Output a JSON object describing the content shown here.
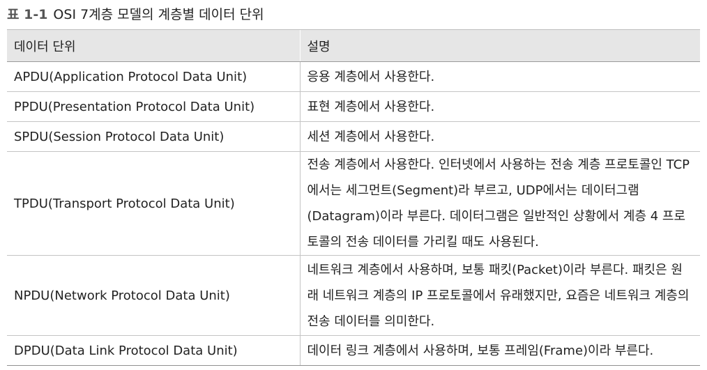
{
  "caption": {
    "label": "표 1-1",
    "title": "OSI 7계층 모델의 계층별 데이터 단위"
  },
  "table": {
    "headers": [
      "데이터 단위",
      "설명"
    ],
    "rows": [
      {
        "unit": "APDU(Application Protocol Data Unit)",
        "desc": "응용 계층에서 사용한다."
      },
      {
        "unit": "PPDU(Presentation Protocol Data Unit)",
        "desc": "표현 계층에서 사용한다."
      },
      {
        "unit": "SPDU(Session Protocol Data Unit)",
        "desc": "세션 계층에서 사용한다."
      },
      {
        "unit": "TPDU(Transport Protocol Data Unit)",
        "desc": "전송 계층에서 사용한다. 인터넷에서 사용하는 전송 계층 프로토콜인 TCP에서는 세그먼트(Segment)라 부르고, UDP에서는 데이터그램(Datagram)이라 부른다. 데이터그램은 일반적인 상황에서 계층 4 프로토콜의 전송 데이터를 가리킬 때도 사용된다."
      },
      {
        "unit": "NPDU(Network Protocol Data Unit)",
        "desc": "네트워크 계층에서 사용하며, 보통 패킷(Packet)이라 부른다. 패킷은 원래 네트워크 계층의 IP 프로토콜에서 유래했지만, 요즘은 네트워크 계층의 전송 데이터를 의미한다."
      },
      {
        "unit": "DPDU(Data Link Protocol Data Unit)",
        "desc": "데이터 링크 계층에서 사용하며, 보통 프레임(Frame)이라 부른다."
      }
    ]
  }
}
